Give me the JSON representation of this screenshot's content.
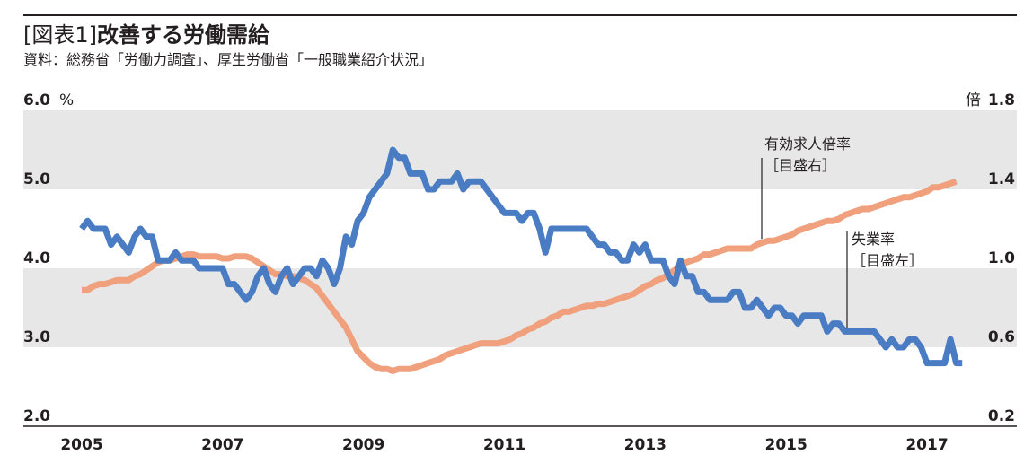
{
  "header": {
    "title_tag": "[図表1]",
    "title_main": "改善する労働需給",
    "source": "資料：総務省「労働力調査」、厚生労働省「一般職業紹介状況」"
  },
  "chart_data": {
    "type": "line",
    "title": "改善する労働需給",
    "x_range": [
      2005,
      2017
    ],
    "x_ticks": [
      "2005",
      "2007",
      "2009",
      "2011",
      "2013",
      "2015",
      "2017"
    ],
    "left_axis": {
      "unit": "%",
      "range": [
        2.0,
        6.0
      ],
      "ticks": [
        "2.0",
        "3.0",
        "4.0",
        "5.0",
        "6.0"
      ]
    },
    "right_axis": {
      "unit": "倍",
      "range": [
        0.2,
        1.8
      ],
      "ticks": [
        "0.2",
        "0.6",
        "1.0",
        "1.4",
        "1.8"
      ]
    },
    "series": [
      {
        "name": "失業率",
        "label": "失業率",
        "scale_label": "［目盛左］",
        "axis": "left",
        "color": "#4a7cc4",
        "start": 2005.0,
        "step": 0.08333,
        "values": [
          4.5,
          4.6,
          4.5,
          4.5,
          4.5,
          4.3,
          4.4,
          4.3,
          4.2,
          4.4,
          4.5,
          4.4,
          4.4,
          4.1,
          4.1,
          4.1,
          4.2,
          4.1,
          4.1,
          4.1,
          4.0,
          4.0,
          4.0,
          4.0,
          4.0,
          3.8,
          3.8,
          3.7,
          3.6,
          3.7,
          3.9,
          4.0,
          3.8,
          3.7,
          3.9,
          4.0,
          3.8,
          3.9,
          4.0,
          4.0,
          3.9,
          4.1,
          4.0,
          3.8,
          4.0,
          4.4,
          4.3,
          4.6,
          4.7,
          4.9,
          5.0,
          5.1,
          5.2,
          5.5,
          5.4,
          5.4,
          5.2,
          5.2,
          5.2,
          5.0,
          5.0,
          5.1,
          5.1,
          5.1,
          5.2,
          5.0,
          5.1,
          5.1,
          5.1,
          5.0,
          4.9,
          4.8,
          4.7,
          4.7,
          4.7,
          4.6,
          4.7,
          4.7,
          4.5,
          4.2,
          4.5,
          4.5,
          4.5,
          4.5,
          4.5,
          4.5,
          4.5,
          4.4,
          4.3,
          4.3,
          4.2,
          4.2,
          4.1,
          4.1,
          4.3,
          4.2,
          4.3,
          4.1,
          4.1,
          4.1,
          3.9,
          3.8,
          4.1,
          3.9,
          3.9,
          3.7,
          3.7,
          3.6,
          3.6,
          3.6,
          3.6,
          3.7,
          3.7,
          3.5,
          3.5,
          3.6,
          3.5,
          3.4,
          3.5,
          3.5,
          3.4,
          3.4,
          3.3,
          3.4,
          3.4,
          3.4,
          3.4,
          3.2,
          3.3,
          3.3,
          3.2,
          3.2,
          3.2,
          3.2,
          3.2,
          3.2,
          3.1,
          3.0,
          3.1,
          3.0,
          3.0,
          3.1,
          3.1,
          3.0,
          2.8,
          2.8,
          2.8,
          2.8,
          3.1,
          2.8,
          2.8
        ]
      },
      {
        "name": "有効求人倍率",
        "label": "有効求人倍率",
        "scale_label": "［目盛右］",
        "axis": "right",
        "color": "#f0a07c",
        "start": 2005.0,
        "step": 0.08333,
        "values": [
          0.89,
          0.89,
          0.91,
          0.92,
          0.92,
          0.93,
          0.94,
          0.94,
          0.94,
          0.96,
          0.97,
          0.99,
          1.01,
          1.03,
          1.04,
          1.04,
          1.05,
          1.06,
          1.07,
          1.07,
          1.06,
          1.06,
          1.06,
          1.06,
          1.05,
          1.05,
          1.06,
          1.06,
          1.06,
          1.05,
          1.03,
          1.01,
          0.99,
          0.97,
          0.97,
          0.96,
          0.96,
          0.95,
          0.94,
          0.92,
          0.9,
          0.86,
          0.82,
          0.78,
          0.74,
          0.7,
          0.64,
          0.58,
          0.55,
          0.52,
          0.5,
          0.49,
          0.49,
          0.48,
          0.49,
          0.49,
          0.49,
          0.5,
          0.51,
          0.52,
          0.53,
          0.54,
          0.56,
          0.57,
          0.58,
          0.59,
          0.6,
          0.61,
          0.62,
          0.62,
          0.62,
          0.62,
          0.63,
          0.64,
          0.66,
          0.67,
          0.69,
          0.7,
          0.72,
          0.73,
          0.75,
          0.76,
          0.78,
          0.78,
          0.79,
          0.8,
          0.81,
          0.81,
          0.82,
          0.82,
          0.83,
          0.84,
          0.85,
          0.86,
          0.87,
          0.89,
          0.91,
          0.92,
          0.94,
          0.95,
          0.97,
          0.99,
          1.01,
          1.03,
          1.04,
          1.05,
          1.07,
          1.07,
          1.08,
          1.09,
          1.1,
          1.1,
          1.1,
          1.1,
          1.1,
          1.12,
          1.13,
          1.14,
          1.14,
          1.15,
          1.16,
          1.17,
          1.19,
          1.2,
          1.21,
          1.22,
          1.23,
          1.24,
          1.24,
          1.25,
          1.27,
          1.28,
          1.29,
          1.3,
          1.3,
          1.31,
          1.32,
          1.33,
          1.34,
          1.35,
          1.36,
          1.36,
          1.37,
          1.38,
          1.39,
          1.41,
          1.41,
          1.42,
          1.43,
          1.44
        ]
      }
    ]
  }
}
